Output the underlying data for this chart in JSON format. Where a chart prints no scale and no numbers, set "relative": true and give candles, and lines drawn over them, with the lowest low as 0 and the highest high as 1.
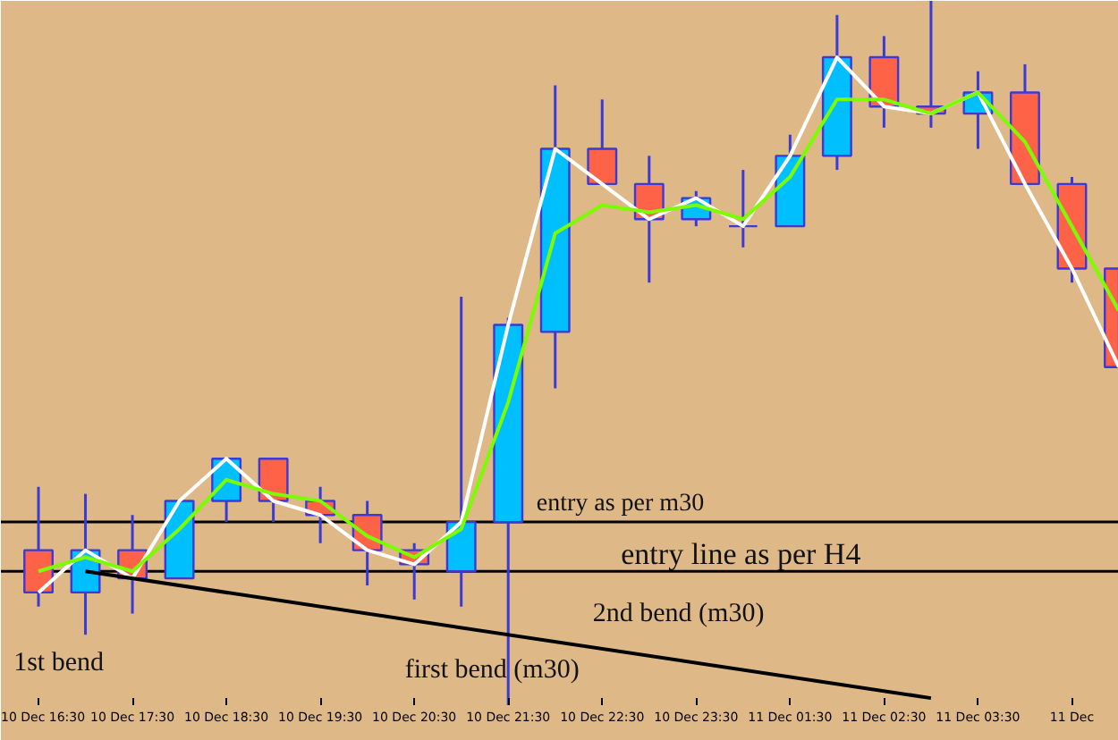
{
  "chart_data": {
    "type": "candlestick",
    "relative": true,
    "categories": [
      "10 Dec 16:30",
      null,
      "10 Dec 17:30",
      null,
      "10 Dec 18:30",
      null,
      "10 Dec 19:30",
      null,
      "10 Dec 20:30",
      null,
      "10 Dec 21:30",
      null,
      "10 Dec 22:30",
      null,
      "10 Dec 23:30",
      null,
      "11 Dec 01:30",
      null,
      "11 Dec 02:30",
      null,
      "11 Dec 03:30",
      null,
      "11 Dec",
      null
    ],
    "ohlc": [
      [
        0.22,
        0.31,
        0.14,
        0.16
      ],
      [
        0.16,
        0.3,
        0.1,
        0.22
      ],
      [
        0.22,
        0.27,
        0.13,
        0.18
      ],
      [
        0.18,
        0.29,
        0.18,
        0.29
      ],
      [
        0.29,
        0.35,
        0.26,
        0.35
      ],
      [
        0.35,
        0.35,
        0.26,
        0.29
      ],
      [
        0.29,
        0.31,
        0.23,
        0.27
      ],
      [
        0.27,
        0.29,
        0.17,
        0.22
      ],
      [
        0.22,
        0.23,
        0.15,
        0.2
      ],
      [
        0.19,
        0.58,
        0.14,
        0.26
      ],
      [
        0.26,
        0.55,
        0,
        0.54
      ],
      [
        0.53,
        0.88,
        0.45,
        0.79
      ],
      [
        0.79,
        0.86,
        0.74,
        0.74
      ],
      [
        0.74,
        0.78,
        0.6,
        0.69
      ],
      [
        0.69,
        0.73,
        0.68,
        0.72
      ],
      [
        0.68,
        0.76,
        0.65,
        0.68
      ],
      [
        0.68,
        0.81,
        0.68,
        0.78
      ],
      [
        0.78,
        0.98,
        0.76,
        0.92
      ],
      [
        0.92,
        0.95,
        0.82,
        0.85
      ],
      [
        0.85,
        1,
        0.82,
        0.84
      ],
      [
        0.84,
        0.9,
        0.79,
        0.87
      ],
      [
        0.87,
        0.91,
        0.74,
        0.74
      ],
      [
        0.74,
        0.75,
        0.6,
        0.62
      ],
      [
        0.62,
        0.62,
        0.48,
        0.48
      ]
    ],
    "colors": [
      "#ff6347",
      "#00bfff",
      "#ff6347",
      "#00bfff",
      "#00bfff",
      "#ff6347",
      "#ff6347",
      "#ff6347",
      "#ff6347",
      "#00bfff",
      "#00bfff",
      "#00bfff",
      "#ff6347",
      "#ff6347",
      "#00bfff",
      "#3a3ad8",
      "#00bfff",
      "#00bfff",
      "#ff6347",
      "#ff6347",
      "#00bfff",
      "#ff6347",
      "#ff6347",
      "#ff6347"
    ],
    "series": [
      {
        "type": "line",
        "color": "#ffffff",
        "values": [
          0.16,
          0.22,
          0.18,
          0.29,
          0.35,
          0.29,
          0.27,
          0.22,
          0.2,
          0.26,
          0.54,
          0.79,
          0.74,
          0.69,
          0.72,
          0.68,
          0.78,
          0.92,
          0.85,
          0.84,
          0.87,
          0.74,
          0.62,
          0.48
        ]
      },
      {
        "type": "line",
        "color": "#7cfc00",
        "values": [
          0.19,
          0.21,
          0.19,
          0.25,
          0.32,
          0.3,
          0.29,
          0.24,
          0.21,
          0.25,
          0.43,
          0.67,
          0.71,
          0.7,
          0.71,
          0.69,
          0.75,
          0.86,
          0.86,
          0.84,
          0.87,
          0.8,
          0.68,
          0.56
        ]
      },
      {
        "type": "line",
        "color": "#000000",
        "values": [
          null,
          0.19,
          null,
          null,
          null,
          null,
          null,
          null,
          null,
          null,
          null,
          null,
          null,
          null,
          null,
          null,
          null,
          null,
          null,
          0.01,
          null,
          null,
          null,
          null
        ]
      }
    ],
    "ref_lines": [
      {
        "axis": "y",
        "value": 0.26,
        "label": "entry as per m30",
        "color": "#000000"
      },
      {
        "axis": "y",
        "value": 0.19,
        "label": "entry line as per H4",
        "color": "#000000"
      }
    ],
    "annotations": [
      "2nd bend (m30)",
      "first bend (m30)",
      "1st bend"
    ],
    "grid": false
  }
}
